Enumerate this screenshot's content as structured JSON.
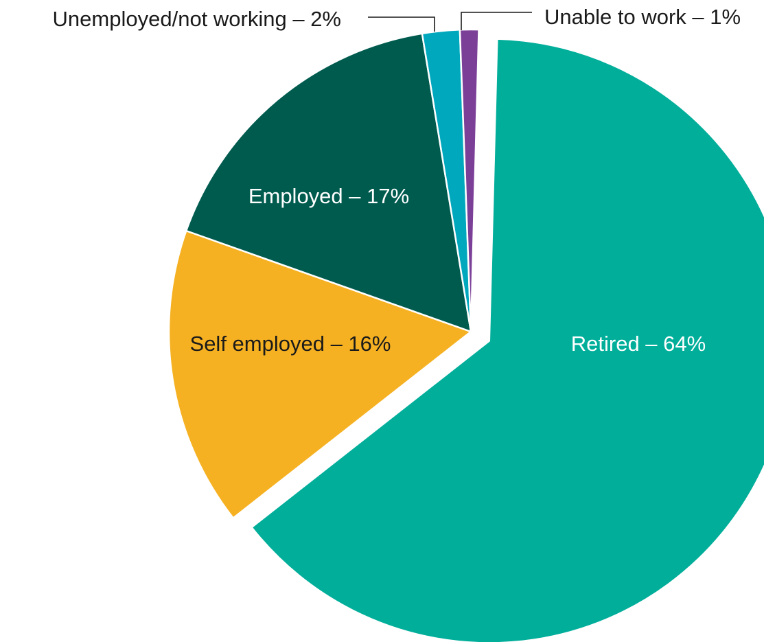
{
  "chart_data": {
    "type": "pie",
    "title": "",
    "slices": [
      {
        "label": "Retired – 64%",
        "value": 64,
        "color": "#00ae9a",
        "label_color": "#ffffff",
        "exploded": true
      },
      {
        "label": "Self employed – 16%",
        "value": 16,
        "color": "#f5b122",
        "label_color": "#1a1a1a",
        "exploded": false
      },
      {
        "label": "Employed – 17%",
        "value": 17,
        "color": "#005b4f",
        "label_color": "#ffffff",
        "exploded": false
      },
      {
        "label": "Unemployed/not working – 2%",
        "value": 2,
        "color": "#00a8bd",
        "label_color": "#1a1a1a",
        "exploded": false
      },
      {
        "label": "Unable to work – 1%",
        "value": 1,
        "color": "#7b3f98",
        "label_color": "#1a1a1a",
        "exploded": false
      }
    ]
  }
}
